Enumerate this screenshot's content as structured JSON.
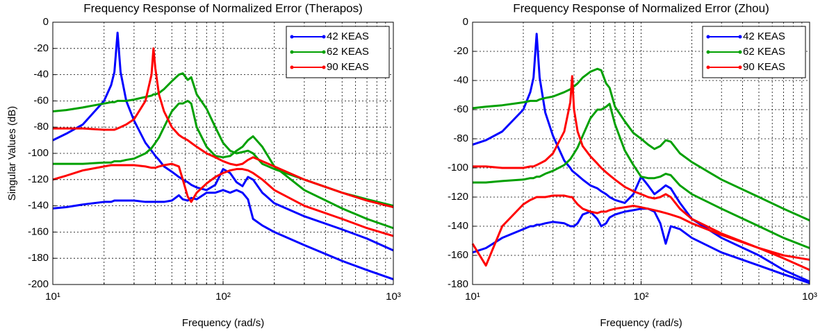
{
  "chart_data": [
    {
      "type": "line",
      "title": "Frequency Response of Normalized Error (Therapos)",
      "xlabel": "Frequency (rad/s)",
      "ylabel": "Singular Values (dB)",
      "x": [
        10,
        12,
        15,
        20,
        22,
        23,
        24,
        25,
        27,
        30,
        35,
        38,
        39,
        40,
        42,
        45,
        50,
        55,
        58,
        62,
        65,
        70,
        80,
        90,
        100,
        110,
        120,
        130,
        140,
        150,
        170,
        200,
        300,
        500,
        700,
        1000
      ],
      "series": [
        {
          "name": "42 KEAS",
          "color": "#0000ff",
          "values": [
            -90,
            -85,
            -78,
            -60,
            -48,
            -38,
            -8,
            -38,
            -60,
            -75,
            -92,
            -98,
            -100,
            -102,
            -105,
            -110,
            -114,
            -118,
            -120,
            -122,
            -124,
            -126,
            -128,
            -124,
            -112,
            -115,
            -122,
            -125,
            -118,
            -120,
            -130,
            -138,
            -148,
            -158,
            -165,
            -174
          ]
        },
        {
          "color": "#0000ff",
          "values": [
            -142,
            -141,
            -139,
            -137,
            -137,
            -136,
            -136,
            -136,
            -136,
            -136,
            -137,
            -137,
            -137,
            -137,
            -137,
            -137,
            -136,
            -132,
            -135,
            -136,
            -134,
            -135,
            -130,
            -130,
            -128,
            -130,
            -128,
            -130,
            -135,
            -150,
            -155,
            -160,
            -170,
            -182,
            -189,
            -196
          ]
        },
        {
          "name": "62 KEAS",
          "color": "#00a000",
          "values": [
            -68,
            -67,
            -65,
            -62,
            -61,
            -61,
            -60,
            -60,
            -60,
            -59,
            -57,
            -56,
            -55,
            -55,
            -54,
            -51,
            -45,
            -40,
            -39,
            -44,
            -42,
            -55,
            -66,
            -80,
            -92,
            -98,
            -100,
            -99,
            -98,
            -100,
            -108,
            -112,
            -120,
            -130,
            -135,
            -140
          ]
        },
        {
          "color": "#00a000",
          "values": [
            -108,
            -108,
            -108,
            -107,
            -107,
            -106,
            -106,
            -106,
            -105,
            -104,
            -100,
            -96,
            -94,
            -92,
            -88,
            -80,
            -68,
            -62,
            -62,
            -60,
            -62,
            -80,
            -95,
            -102,
            -103,
            -102,
            -98,
            -95,
            -90,
            -87,
            -95,
            -110,
            -128,
            -142,
            -150,
            -157
          ]
        },
        {
          "name": "90 KEAS",
          "color": "#ff0000",
          "values": [
            -81,
            -81,
            -81,
            -82,
            -82,
            -82,
            -81,
            -80,
            -78,
            -74,
            -60,
            -40,
            -20,
            -35,
            -55,
            -68,
            -80,
            -86,
            -88,
            -90,
            -92,
            -95,
            -100,
            -103,
            -106,
            -108,
            -109,
            -108,
            -105,
            -103,
            -106,
            -110,
            -120,
            -130,
            -136,
            -141
          ]
        },
        {
          "color": "#ff0000",
          "values": [
            -120,
            -117,
            -113,
            -110,
            -109,
            -109,
            -109,
            -109,
            -109,
            -109,
            -110,
            -111,
            -111,
            -111,
            -110,
            -109,
            -108,
            -110,
            -120,
            -133,
            -137,
            -130,
            -123,
            -118,
            -115,
            -113,
            -112,
            -112,
            -113,
            -115,
            -120,
            -128,
            -140,
            -150,
            -157,
            -163
          ]
        }
      ],
      "xlog": true,
      "xlim": [
        10,
        1000
      ],
      "xticks": [
        {
          "value": 10,
          "label": "10¹"
        },
        {
          "value": 100,
          "label": "10²"
        },
        {
          "value": 1000,
          "label": "10³"
        }
      ],
      "xminor": [
        20,
        30,
        40,
        50,
        60,
        70,
        80,
        90,
        200,
        300,
        400,
        500,
        600,
        700,
        800,
        900
      ],
      "ylim": [
        -200,
        0
      ],
      "yticks": [
        0,
        -20,
        -40,
        -60,
        -80,
        -100,
        -120,
        -140,
        -160,
        -180,
        -200
      ],
      "grid": true,
      "legend": "upper right"
    },
    {
      "type": "line",
      "title": "Frequency Response of Normalized Error (Zhou)",
      "xlabel": "Frequency (rad/s)",
      "x": [
        10,
        12,
        15,
        20,
        22,
        23,
        24,
        25,
        27,
        30,
        35,
        38,
        39,
        40,
        42,
        45,
        50,
        55,
        58,
        62,
        65,
        70,
        80,
        90,
        100,
        110,
        120,
        130,
        140,
        150,
        170,
        200,
        300,
        500,
        700,
        1000
      ],
      "series": [
        {
          "name": "42 KEAS",
          "color": "#0000ff",
          "values": [
            -84,
            -81,
            -75,
            -60,
            -48,
            -38,
            -8,
            -38,
            -62,
            -78,
            -95,
            -100,
            -102,
            -103,
            -105,
            -108,
            -112,
            -114,
            -116,
            -118,
            -120,
            -122,
            -124,
            -118,
            -106,
            -112,
            -118,
            -115,
            -112,
            -114,
            -124,
            -135,
            -148,
            -160,
            -170,
            -178
          ]
        },
        {
          "color": "#0000ff",
          "values": [
            -158,
            -155,
            -148,
            -142,
            -140,
            -140,
            -139,
            -139,
            -138,
            -137,
            -138,
            -140,
            -140,
            -140,
            -138,
            -132,
            -130,
            -135,
            -140,
            -138,
            -134,
            -132,
            -130,
            -129,
            -128,
            -128,
            -130,
            -138,
            -152,
            -140,
            -142,
            -148,
            -158,
            -167,
            -173,
            -179
          ]
        },
        {
          "name": "62 KEAS",
          "color": "#00a000",
          "values": [
            -59,
            -58,
            -57,
            -55,
            -54,
            -54,
            -54,
            -53,
            -52,
            -51,
            -48,
            -46,
            -45,
            -44,
            -42,
            -38,
            -34,
            -32,
            -33,
            -42,
            -45,
            -58,
            -68,
            -76,
            -80,
            -84,
            -87,
            -85,
            -81,
            -82,
            -90,
            -96,
            -108,
            -120,
            -128,
            -136
          ]
        },
        {
          "color": "#00a000",
          "values": [
            -110,
            -110,
            -109,
            -108,
            -107,
            -107,
            -106,
            -106,
            -104,
            -102,
            -98,
            -94,
            -92,
            -90,
            -86,
            -78,
            -66,
            -60,
            -60,
            -58,
            -56,
            -70,
            -88,
            -98,
            -106,
            -107,
            -107,
            -106,
            -104,
            -105,
            -112,
            -118,
            -128,
            -140,
            -148,
            -155
          ]
        },
        {
          "name": "90 KEAS",
          "color": "#ff0000",
          "values": [
            -99,
            -99,
            -100,
            -100,
            -99,
            -99,
            -98,
            -97,
            -95,
            -90,
            -75,
            -55,
            -37,
            -60,
            -75,
            -85,
            -92,
            -97,
            -100,
            -103,
            -105,
            -108,
            -113,
            -116,
            -118,
            -120,
            -121,
            -120,
            -118,
            -120,
            -128,
            -135,
            -145,
            -155,
            -162,
            -170
          ]
        },
        {
          "color": "#ff0000",
          "values": [
            -152,
            -167,
            -140,
            -125,
            -122,
            -121,
            -120,
            -120,
            -120,
            -119,
            -119,
            -120,
            -120,
            -122,
            -125,
            -128,
            -130,
            -131,
            -130,
            -130,
            -129,
            -128,
            -127,
            -126,
            -127,
            -128,
            -129,
            -130,
            -131,
            -132,
            -134,
            -138,
            -146,
            -155,
            -160,
            -163
          ]
        }
      ],
      "xlog": true,
      "xlim": [
        10,
        1000
      ],
      "xticks": [
        {
          "value": 10,
          "label": "10¹"
        },
        {
          "value": 100,
          "label": "10²"
        },
        {
          "value": 1000,
          "label": "10³"
        }
      ],
      "xminor": [
        20,
        30,
        40,
        50,
        60,
        70,
        80,
        90,
        200,
        300,
        400,
        500,
        600,
        700,
        800,
        900
      ],
      "ylim": [
        -180,
        0
      ],
      "yticks": [
        0,
        -20,
        -40,
        -60,
        -80,
        -100,
        -120,
        -140,
        -160,
        -180
      ],
      "grid": true,
      "legend": "upper right"
    }
  ]
}
